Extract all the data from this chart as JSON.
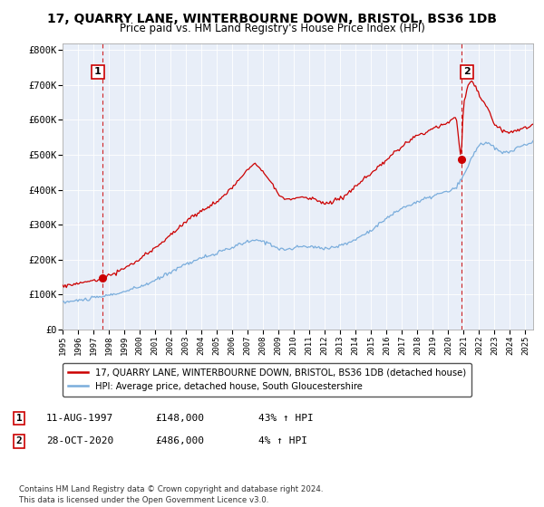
{
  "title": "17, QUARRY LANE, WINTERBOURNE DOWN, BRISTOL, BS36 1DB",
  "subtitle": "Price paid vs. HM Land Registry's House Price Index (HPI)",
  "title_fontsize": 10,
  "subtitle_fontsize": 8.5,
  "ylabel_ticks": [
    "£0",
    "£100K",
    "£200K",
    "£300K",
    "£400K",
    "£500K",
    "£600K",
    "£700K",
    "£800K"
  ],
  "ytick_values": [
    0,
    100000,
    200000,
    300000,
    400000,
    500000,
    600000,
    700000,
    800000
  ],
  "ylim": [
    0,
    820000
  ],
  "xlim_start": 1995.0,
  "xlim_end": 2025.5,
  "x_ticks": [
    1995,
    1996,
    1997,
    1998,
    1999,
    2000,
    2001,
    2002,
    2003,
    2004,
    2005,
    2006,
    2007,
    2008,
    2009,
    2010,
    2011,
    2012,
    2013,
    2014,
    2015,
    2016,
    2017,
    2018,
    2019,
    2020,
    2021,
    2022,
    2023,
    2024,
    2025
  ],
  "hpi_color": "#7aaddc",
  "price_color": "#cc0000",
  "sale1_x": 1997.61,
  "sale1_y": 148000,
  "sale2_x": 2020.83,
  "sale2_y": 486000,
  "marker1_label": "1",
  "marker2_label": "2",
  "legend_line1": "17, QUARRY LANE, WINTERBOURNE DOWN, BRISTOL, BS36 1DB (detached house)",
  "legend_line2": "HPI: Average price, detached house, South Gloucestershire",
  "row1_num": "1",
  "row1_date": "11-AUG-1997",
  "row1_price": "£148,000",
  "row1_hpi": "43% ↑ HPI",
  "row2_num": "2",
  "row2_date": "28-OCT-2020",
  "row2_price": "£486,000",
  "row2_hpi": "4% ↑ HPI",
  "copyright": "Contains HM Land Registry data © Crown copyright and database right 2024.\nThis data is licensed under the Open Government Licence v3.0.",
  "plot_bg_color": "#e8eef8",
  "grid_color": "#ffffff"
}
